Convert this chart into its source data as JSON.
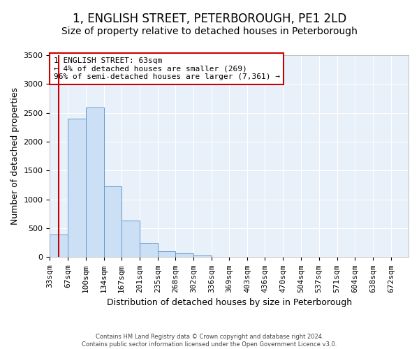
{
  "title": "1, ENGLISH STREET, PETERBOROUGH, PE1 2LD",
  "subtitle": "Size of property relative to detached houses in Peterborough",
  "xlabel": "Distribution of detached houses by size in Peterborough",
  "ylabel": "Number of detached properties",
  "bar_color": "#cce0f5",
  "bar_edge_color": "#6699cc",
  "background_color": "#e8f0fa",
  "grid_color": "#ffffff",
  "annotation_text": "1 ENGLISH STREET: 63sqm\n← 4% of detached houses are smaller (269)\n96% of semi-detached houses are larger (7,361) →",
  "annotation_box_color": "#ffffff",
  "annotation_border_color": "#cc0000",
  "red_line_x": 50,
  "red_line_color": "#cc0000",
  "bins": [
    33,
    67,
    100,
    134,
    167,
    201,
    235,
    268,
    302,
    336,
    369,
    403,
    436,
    470,
    504,
    537,
    571,
    604,
    638,
    672,
    705
  ],
  "bar_values": [
    390,
    2400,
    2590,
    1230,
    635,
    250,
    105,
    65,
    35,
    0,
    0,
    0,
    0,
    0,
    0,
    0,
    0,
    0,
    0,
    0
  ],
  "ylim": [
    0,
    3500
  ],
  "yticks": [
    0,
    500,
    1000,
    1500,
    2000,
    2500,
    3000,
    3500
  ],
  "footer": "Contains HM Land Registry data © Crown copyright and database right 2024.\nContains public sector information licensed under the Open Government Licence v3.0.",
  "title_fontsize": 12,
  "subtitle_fontsize": 10,
  "xlabel_fontsize": 9,
  "ylabel_fontsize": 9,
  "tick_fontsize": 8,
  "annotation_fontsize": 8,
  "footer_fontsize": 6
}
